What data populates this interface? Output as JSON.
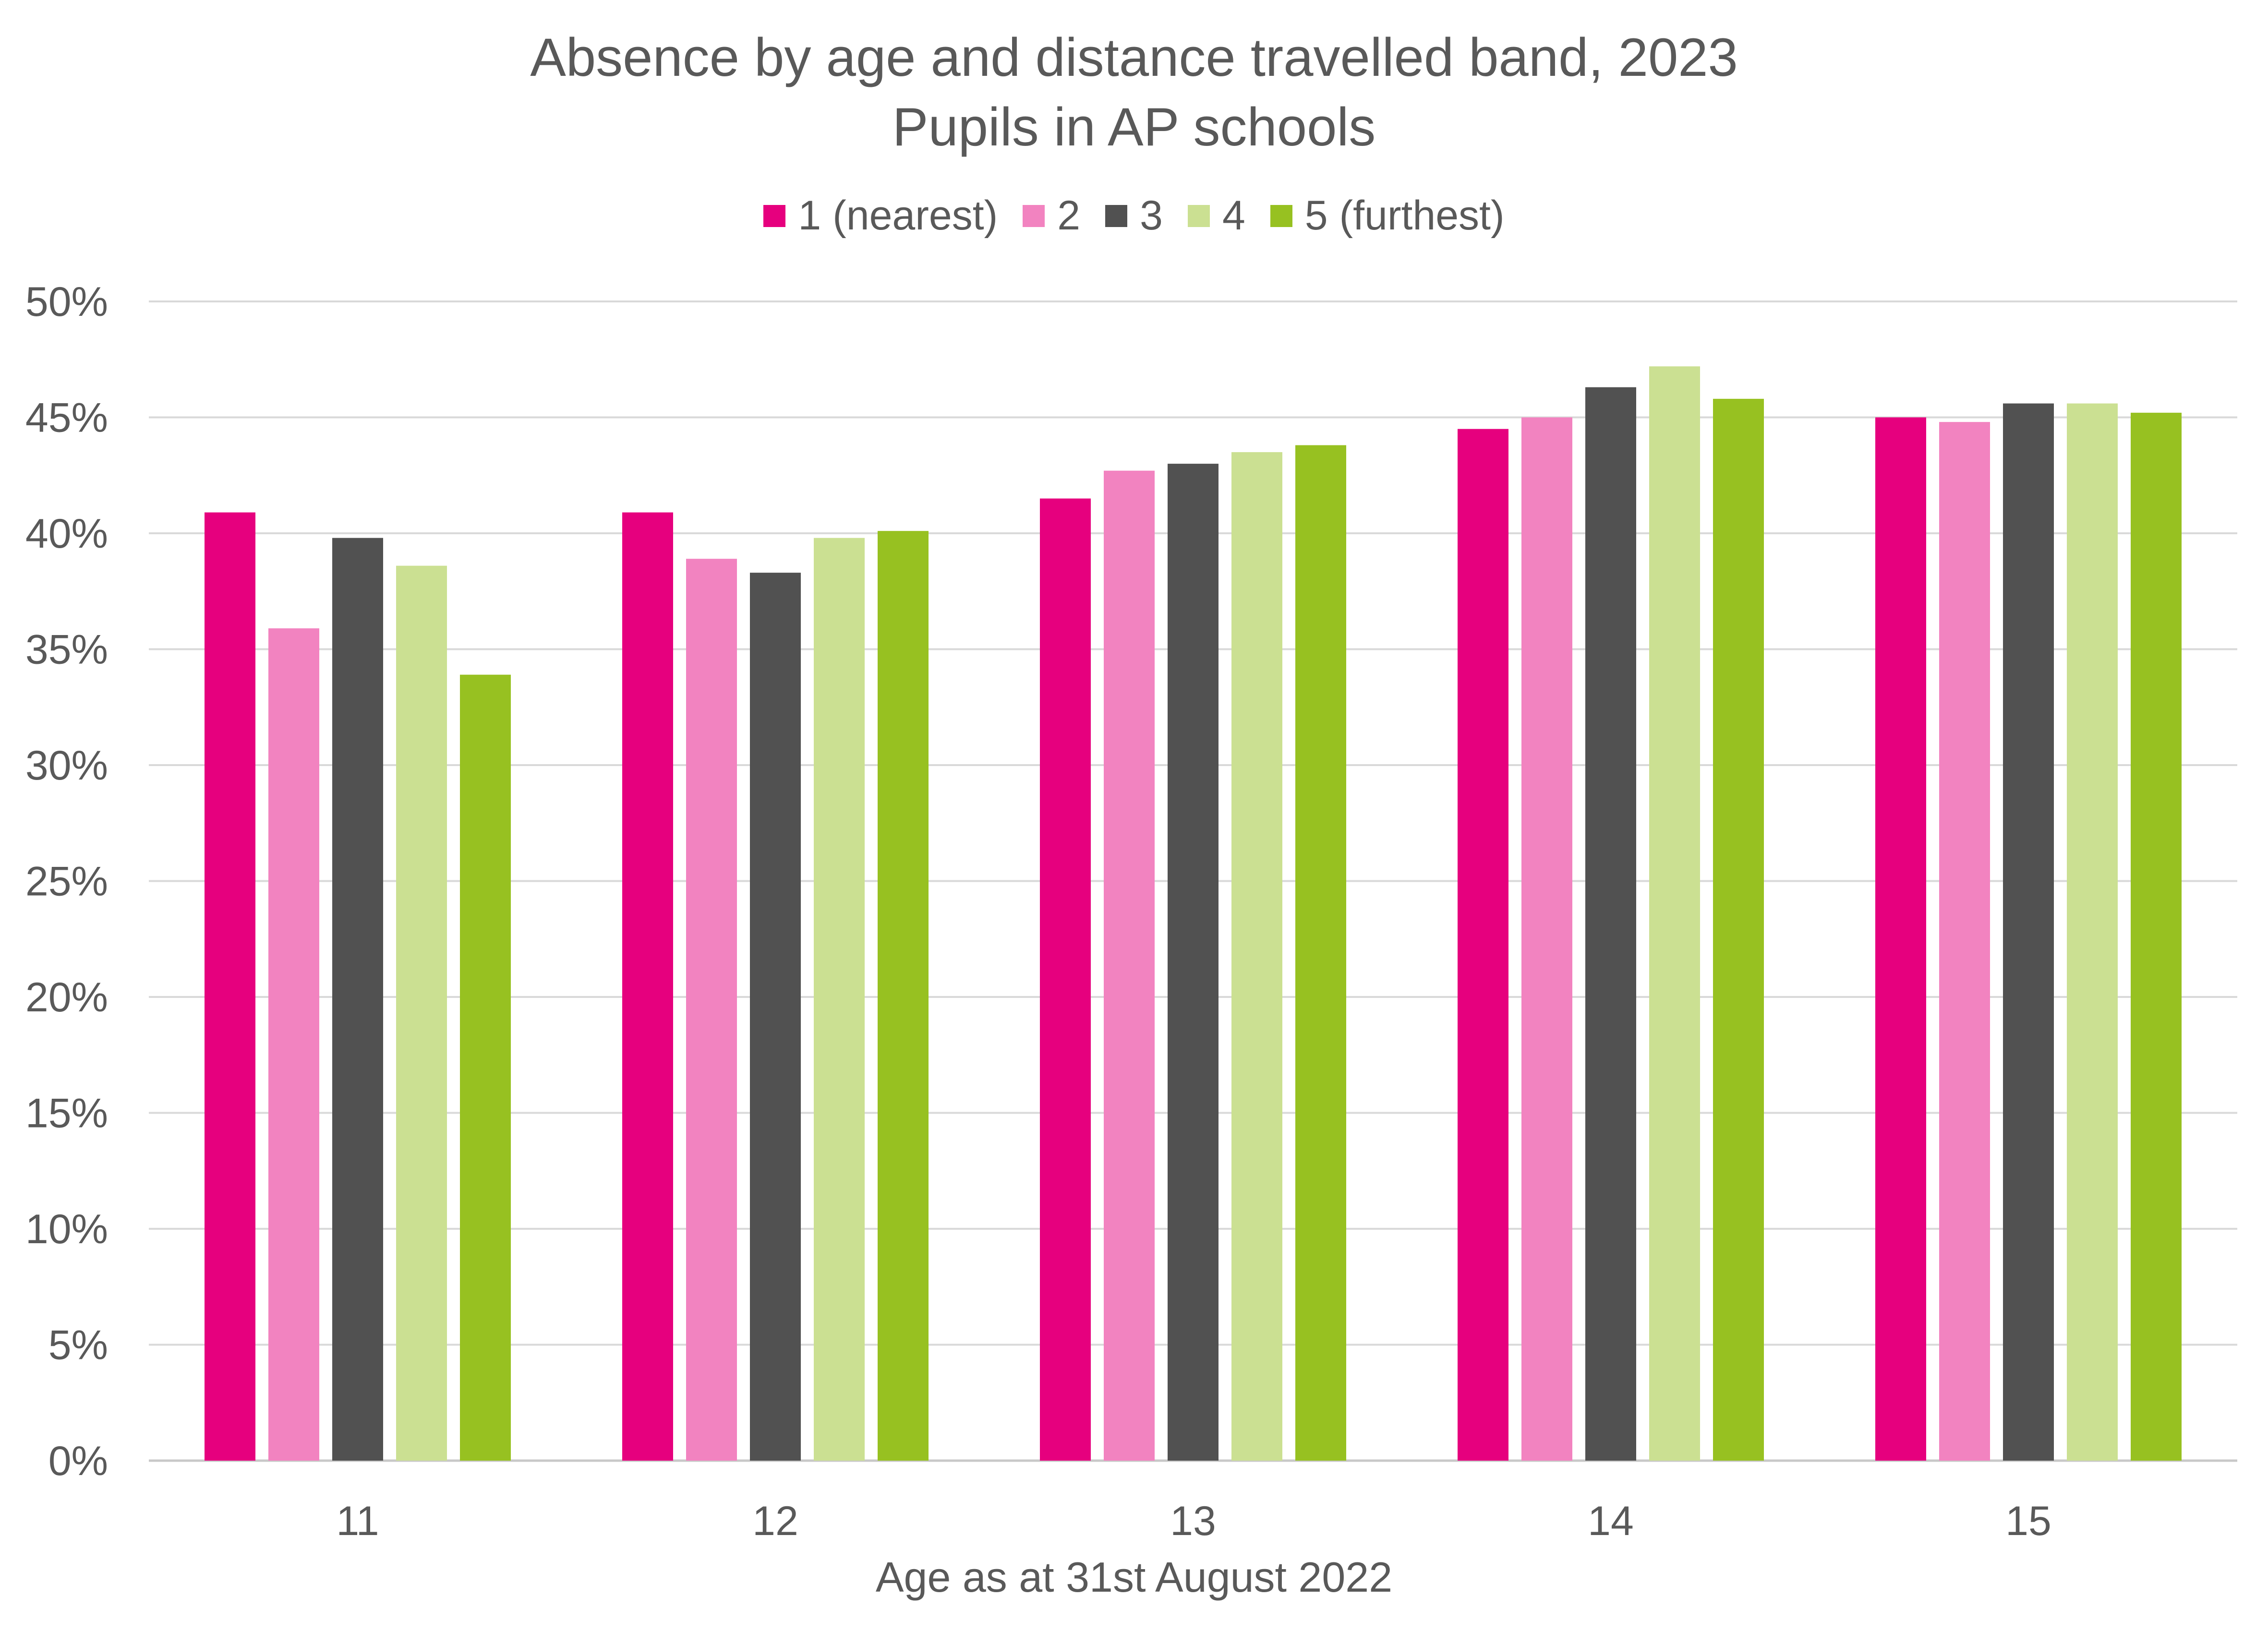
{
  "chart_data": {
    "type": "bar",
    "title": "Absence by age and distance travelled band, 2023",
    "subtitle": "Pupils in AP schools",
    "xlabel": "Age as at 31st August 2022",
    "ylabel": "",
    "categories": [
      "11",
      "12",
      "13",
      "14",
      "15"
    ],
    "ylim": [
      0,
      50
    ],
    "yticks": [
      "0%",
      "5%",
      "10%",
      "15%",
      "20%",
      "25%",
      "30%",
      "35%",
      "40%",
      "45%",
      "50%"
    ],
    "grid": true,
    "legend_position": "top",
    "series": [
      {
        "name": "1 (nearest)",
        "color": "#E6007E",
        "values": [
          40.9,
          40.9,
          41.5,
          44.5,
          45.0
        ]
      },
      {
        "name": "2",
        "color": "#F283C0",
        "values": [
          35.9,
          38.9,
          42.7,
          45.0,
          44.8
        ]
      },
      {
        "name": "3",
        "color": "#515151",
        "values": [
          39.8,
          38.3,
          43.0,
          46.3,
          45.6
        ]
      },
      {
        "name": "4",
        "color": "#CBE092",
        "values": [
          38.6,
          39.8,
          43.5,
          47.2,
          45.6
        ]
      },
      {
        "name": "5 (furthest)",
        "color": "#97C121",
        "values": [
          33.9,
          40.1,
          43.8,
          45.8,
          45.2
        ]
      }
    ]
  }
}
